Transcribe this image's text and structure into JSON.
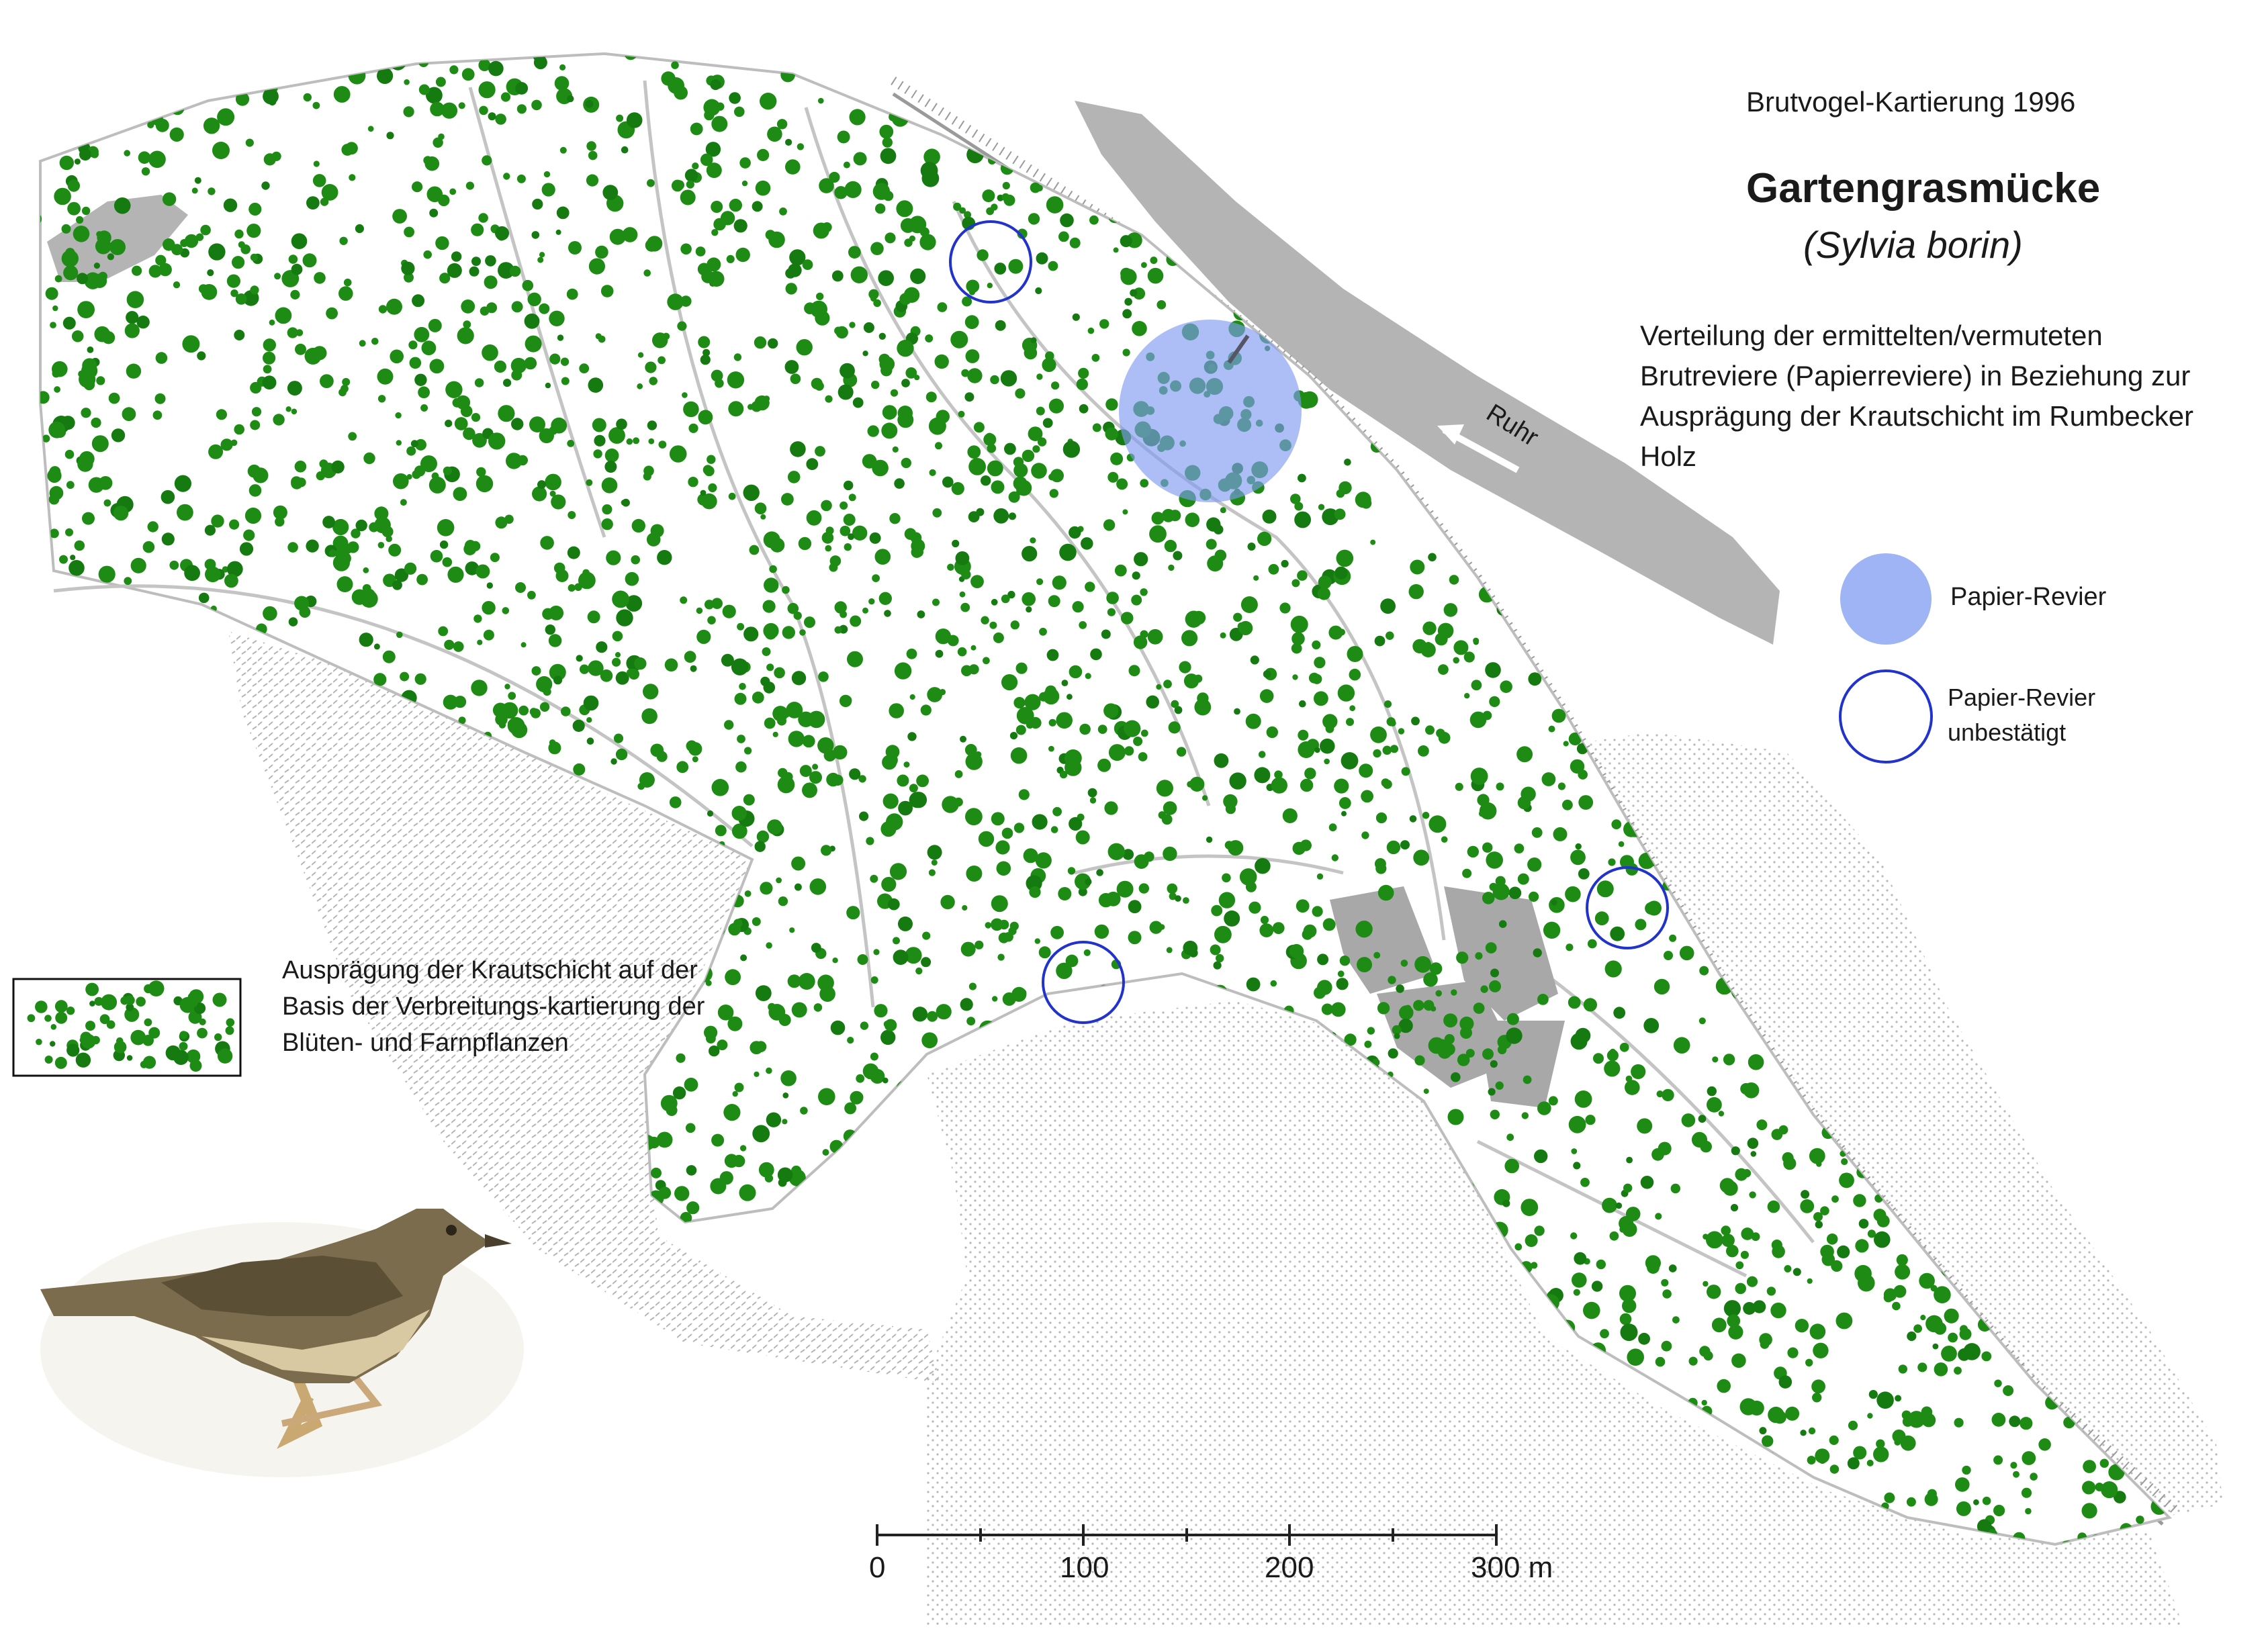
{
  "header": {
    "survey_title": "Brutvogel-Kartierung 1996",
    "species_name": "Gartengrasmücke",
    "species_latin": "(Sylvia borin)",
    "description": "Verteilung der ermittelten/vermuteten Brutreviere (Papierreviere) in Beziehung zur Ausprägung der Krautschicht im Rumbecker Holz"
  },
  "map": {
    "river_label": "Ruhr",
    "colors": {
      "herb_dots": "#1e8c14",
      "herb_dots_dark": "#157a10",
      "river": "#b4b4b4",
      "building": "#a8a8a8",
      "territory_fill": "#7f9bf0",
      "territory_outline": "#2233cc",
      "stipple": "#bdbdbd"
    },
    "territories": [
      {
        "type": "paper-territory",
        "confirmed": true
      },
      {
        "type": "paper-territory",
        "confirmed": false
      },
      {
        "type": "paper-territory",
        "confirmed": false
      },
      {
        "type": "paper-territory",
        "confirmed": false
      }
    ]
  },
  "legend": {
    "paper_territory": "Papier-Revier",
    "unconfirmed_line1": "Papier-Revier",
    "unconfirmed_line2": "unbestätigt",
    "herb_layer": "Ausprägung der Krautschicht auf der Basis der Verbreitungs-kartierung der Blüten- und Farnpflanzen"
  },
  "scale_bar": {
    "labels": [
      "0",
      "100",
      "200",
      "300 m"
    ],
    "unit": "m"
  },
  "illustration": {
    "icon": "garden-warbler-illustration"
  }
}
